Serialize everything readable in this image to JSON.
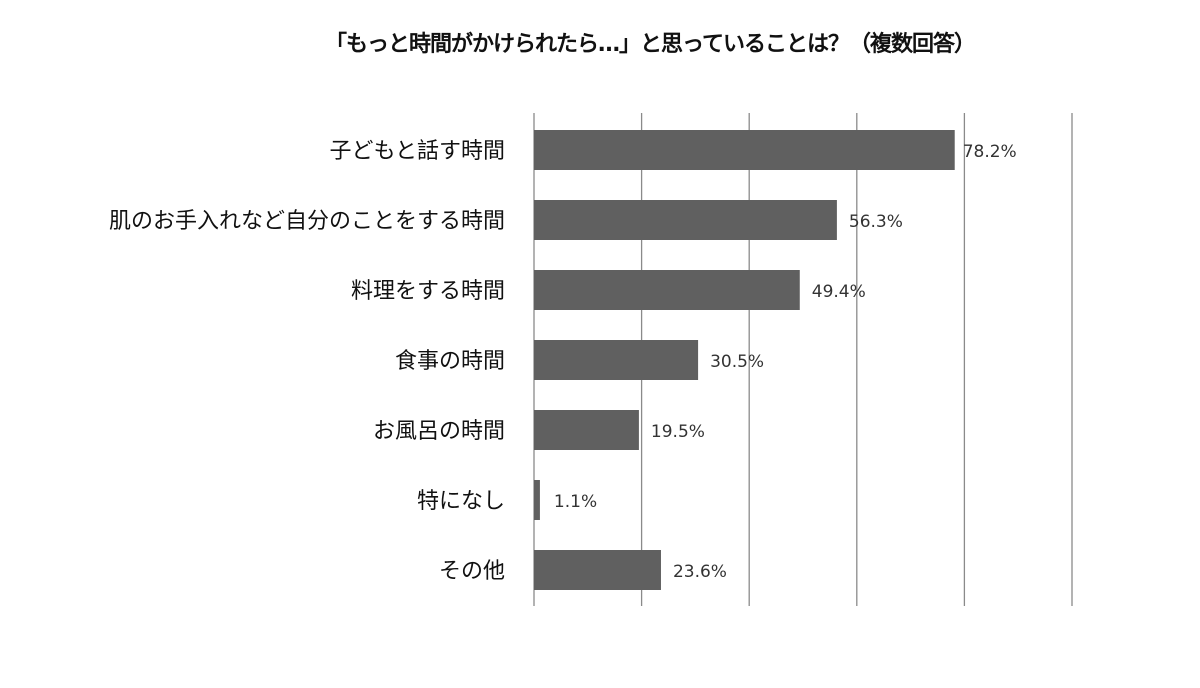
{
  "chart_data": {
    "type": "bar",
    "orientation": "horizontal",
    "title": "「もっと時間がかけられたら…」と思っていることは？（複数回答）",
    "categories": [
      "子どもと話す時間",
      "肌のお手入れなど自分のことをする時間",
      "料理をする時間",
      "食事の時間",
      "お風呂の時間",
      "特になし",
      "その他"
    ],
    "values": [
      78.2,
      56.3,
      49.4,
      30.5,
      19.5,
      1.1,
      23.6
    ],
    "data_labels": [
      "78.2%",
      "56.3%",
      "49.4%",
      "30.5%",
      "19.5%",
      "1.1%",
      "23.6%"
    ],
    "xlim": [
      0,
      100
    ],
    "x_gridlines": [
      0,
      20,
      40,
      60,
      80,
      100
    ],
    "grid": true,
    "legend": "none",
    "bar_color": "#606060",
    "grid_color": "#8a8a8a"
  }
}
